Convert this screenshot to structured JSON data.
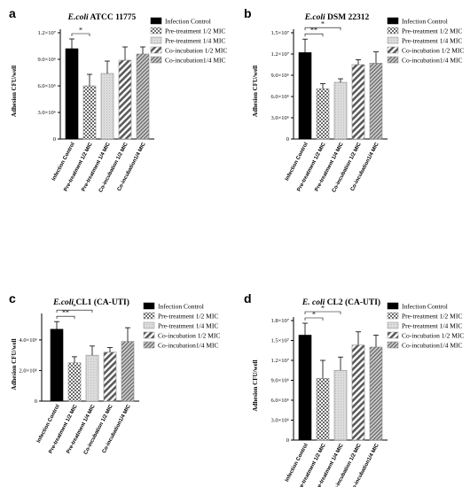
{
  "legend": [
    "Infection Control",
    "Pre-treatment 1/2 MIC",
    "Pre-treatment 1/4 MIC",
    "Co-incubation 1/2 MIC",
    "Co-incubation1/4 MIC"
  ],
  "chart_data": [
    {
      "type": "bar",
      "panel": "a",
      "title_italic": "E.coli",
      "title_rest": " ATCC 11775",
      "ylabel": "Adhesion CFU/well",
      "ylim": [
        0,
        12000000
      ],
      "yticks": [
        0,
        3000000,
        6000000,
        9000000,
        12000000
      ],
      "ytick_labels": [
        "0",
        "3.0×10⁶",
        "6.0×10⁶",
        "9.0×10⁶",
        "1.2×10⁷"
      ],
      "categories": [
        "Infection Control",
        "Pre-treatment 1/2 MIC",
        "Pre-treatment 1/4 MIC",
        "Co-incubation 1/2 MIC",
        "Co-incubation1/4 MIC"
      ],
      "values": [
        10200000,
        6000000,
        7400000,
        8900000,
        9600000
      ],
      "errors": [
        1100000,
        1300000,
        1400000,
        1500000,
        800000
      ],
      "significance": [
        {
          "from": 0,
          "to": 1,
          "label": "*"
        }
      ]
    },
    {
      "type": "bar",
      "panel": "b",
      "title_italic": "E.coli",
      "title_rest": " DSM 22312",
      "ylabel": "Adhesion CFU/well",
      "ylim": [
        0,
        15000000
      ],
      "yticks": [
        0,
        3000000,
        6000000,
        9000000,
        12000000,
        15000000
      ],
      "ytick_labels": [
        "0",
        "3.0×10⁶",
        "6.0×10⁶",
        "9.0×10⁶",
        "1.2×10⁷",
        "1.5×10⁷"
      ],
      "categories": [
        "Infection Control",
        "Pre-treatment 1/2 MIC",
        "Pre-treatment 1/4 MIC",
        "Co-incubation 1/2 MIC",
        "Co-incubation1/4 MIC"
      ],
      "values": [
        12200000,
        7100000,
        8000000,
        10500000,
        10700000
      ],
      "errors": [
        1900000,
        700000,
        500000,
        700000,
        1600000
      ],
      "significance": [
        {
          "from": 0,
          "to": 1,
          "label": "**"
        },
        {
          "from": 0,
          "to": 2,
          "label": "*"
        }
      ]
    },
    {
      "type": "bar",
      "panel": "c",
      "title_italic": "E.coli",
      "title_rest": " CL1 (CA-UTI)",
      "ylabel": "Adhesion CFU/well",
      "ylim": [
        0,
        5500000
      ],
      "yticks": [
        0,
        2000000,
        4000000
      ],
      "ytick_labels": [
        "0",
        "2.0×10⁶",
        "4.0×10⁶"
      ],
      "categories": [
        "Infection Control",
        "Pre-treatment 1/2 MIC",
        "Pre-treatment 1/4 MIC",
        "Co-incubation 1/2 MIC",
        "Co-incubation1/4 MIC"
      ],
      "values": [
        4700000,
        2500000,
        3000000,
        3200000,
        3900000
      ],
      "errors": [
        500000,
        400000,
        600000,
        300000,
        900000
      ],
      "significance": [
        {
          "from": 0,
          "to": 1,
          "label": "**"
        },
        {
          "from": 0,
          "to": 2,
          "label": "*"
        }
      ]
    },
    {
      "type": "bar",
      "panel": "d",
      "title_italic": "E. coli",
      "title_rest": " CL2 (CA-UTI)",
      "ylabel": "Adhesion CFU/well",
      "ylim": [
        0,
        18000000
      ],
      "yticks": [
        0,
        3000000,
        6000000,
        9000000,
        12000000,
        15000000,
        18000000
      ],
      "ytick_labels": [
        "0",
        "3.0×10⁶",
        "6.0×10⁶",
        "9.0×10⁶",
        "1.2×10⁷",
        "1.5×10⁷",
        "1.8×10⁷"
      ],
      "categories": [
        "Infection Control",
        "Pre-treatment 1/2 MIC",
        "Pre-treatment 1/4 MIC",
        "Co-incubation 1/2 MIC",
        "Co-incubation1/4 MIC"
      ],
      "values": [
        15800000,
        9300000,
        10500000,
        14300000,
        14000000
      ],
      "errors": [
        1800000,
        2700000,
        2000000,
        2000000,
        1800000
      ],
      "significance": [
        {
          "from": 0,
          "to": 1,
          "label": "*"
        },
        {
          "from": 0,
          "to": 2,
          "label": "*"
        }
      ]
    }
  ]
}
